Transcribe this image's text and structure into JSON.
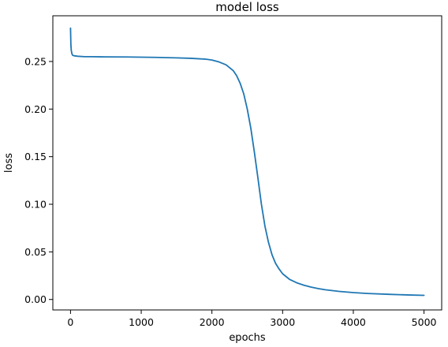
{
  "chart_data": {
    "type": "line",
    "title": "model loss",
    "xlabel": "epochs",
    "ylabel": "loss",
    "xlim": [
      -250,
      5250
    ],
    "ylim": [
      -0.011,
      0.298
    ],
    "x_ticks": [
      0,
      1000,
      2000,
      3000,
      4000,
      5000
    ],
    "x_tick_labels": [
      "0",
      "1000",
      "2000",
      "3000",
      "4000",
      "5000"
    ],
    "y_ticks": [
      0.0,
      0.05,
      0.1,
      0.15,
      0.2,
      0.25
    ],
    "y_tick_labels": [
      "0.00",
      "0.05",
      "0.10",
      "0.15",
      "0.20",
      "0.25"
    ],
    "grid": false,
    "legend": null,
    "colors": {
      "series": "#1f77b4",
      "axes": "#000000",
      "background": "#ffffff"
    },
    "series": [
      {
        "x": [
          0,
          5,
          10,
          20,
          30,
          50,
          100,
          200,
          300,
          500,
          800,
          1000,
          1200,
          1500,
          1700,
          1900,
          2000,
          2100,
          2200,
          2300,
          2350,
          2400,
          2450,
          2500,
          2550,
          2600,
          2650,
          2700,
          2750,
          2800,
          2850,
          2900,
          2950,
          3000,
          3100,
          3200,
          3300,
          3400,
          3500,
          3600,
          3800,
          4000,
          4200,
          4500,
          4800,
          5000
        ],
        "y": [
          0.285,
          0.268,
          0.262,
          0.258,
          0.2565,
          0.256,
          0.2555,
          0.255,
          0.255,
          0.2548,
          0.2547,
          0.2545,
          0.2543,
          0.2538,
          0.2533,
          0.2525,
          0.2515,
          0.2495,
          0.2465,
          0.2405,
          0.235,
          0.227,
          0.216,
          0.2,
          0.18,
          0.155,
          0.128,
          0.1,
          0.077,
          0.06,
          0.047,
          0.038,
          0.032,
          0.027,
          0.021,
          0.0175,
          0.015,
          0.013,
          0.0115,
          0.0102,
          0.0085,
          0.0072,
          0.0063,
          0.0054,
          0.0047,
          0.0043
        ]
      }
    ]
  }
}
